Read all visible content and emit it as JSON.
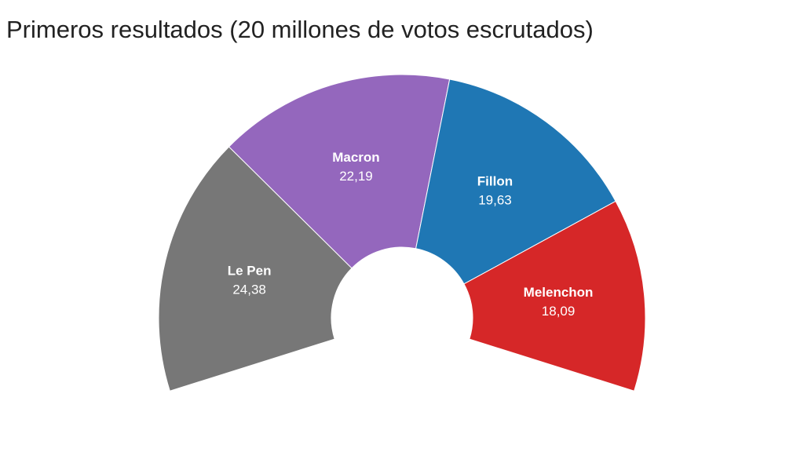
{
  "chart_data": {
    "type": "pie",
    "title": "Primeros resultados (20 millones de votos escrutados)",
    "categories": [
      "Le Pen",
      "Macron",
      "Fillon",
      "Melenchon"
    ],
    "values": [
      24.38,
      22.19,
      19.63,
      18.09
    ],
    "value_labels": [
      "24,38",
      "22,19",
      "19,63",
      "18,09"
    ],
    "colors": [
      "#777777",
      "#9467bd",
      "#1f77b4",
      "#d62728"
    ]
  }
}
